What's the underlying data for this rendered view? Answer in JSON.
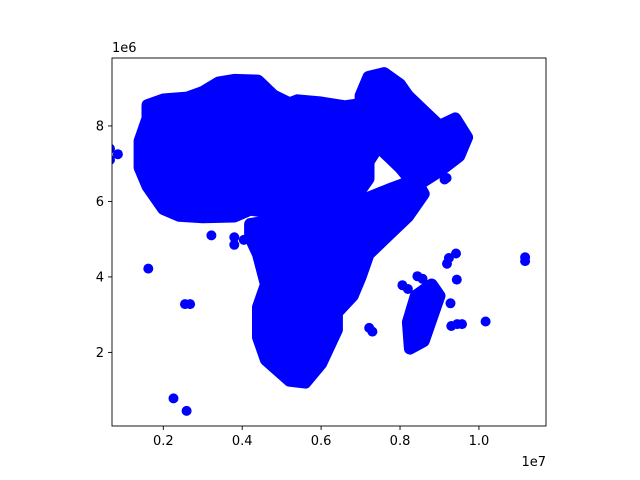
{
  "chart_data": {
    "type": "scatter",
    "title": "",
    "xlabel": "",
    "ylabel": "",
    "x_offset_label": "1e7",
    "y_offset_label": "1e6",
    "xlim": [
      0.07,
      1.17
    ],
    "ylim": [
      0.05,
      9.8
    ],
    "x_ticks": [
      0.2,
      0.4,
      0.6,
      0.8,
      1.0
    ],
    "x_tick_labels": [
      "0.2",
      "0.4",
      "0.6",
      "0.8",
      "1.0"
    ],
    "y_ticks": [
      2,
      4,
      6,
      8
    ],
    "y_tick_labels": [
      "2",
      "4",
      "6",
      "8"
    ],
    "grid": false,
    "marker_color": "#0000ff",
    "series": [
      {
        "regions": [
          {
            "part": "west-north",
            "outline": [
              [
                0.16,
                8.55
              ],
              [
                0.2,
                8.7
              ],
              [
                0.26,
                8.75
              ],
              [
                0.3,
                8.9
              ],
              [
                0.34,
                9.15
              ],
              [
                0.38,
                9.22
              ],
              [
                0.44,
                9.2
              ],
              [
                0.48,
                8.8
              ],
              [
                0.52,
                8.6
              ],
              [
                0.54,
                8.68
              ],
              [
                0.6,
                8.62
              ],
              [
                0.66,
                8.52
              ],
              [
                0.7,
                8.58
              ],
              [
                0.74,
                8.7
              ],
              [
                0.8,
                8.62
              ],
              [
                0.82,
                8.38
              ],
              [
                0.86,
                8.12
              ],
              [
                0.82,
                7.9
              ],
              [
                0.76,
                7.7
              ],
              [
                0.72,
                7.05
              ],
              [
                0.72,
                6.6
              ],
              [
                0.7,
                6.3
              ],
              [
                0.66,
                6.0
              ],
              [
                0.56,
                5.82
              ],
              [
                0.48,
                5.7
              ],
              [
                0.42,
                5.78
              ],
              [
                0.38,
                5.6
              ],
              [
                0.3,
                5.58
              ],
              [
                0.24,
                5.62
              ],
              [
                0.2,
                5.8
              ],
              [
                0.16,
                6.4
              ],
              [
                0.14,
                6.9
              ],
              [
                0.14,
                7.6
              ],
              [
                0.16,
                8.2
              ]
            ]
          },
          {
            "part": "south-body",
            "outline": [
              [
                0.42,
                5.4
              ],
              [
                0.54,
                5.6
              ],
              [
                0.66,
                5.82
              ],
              [
                0.72,
                6.1
              ],
              [
                0.78,
                6.35
              ],
              [
                0.84,
                6.58
              ],
              [
                0.86,
                6.2
              ],
              [
                0.82,
                5.6
              ],
              [
                0.76,
                5.0
              ],
              [
                0.72,
                4.6
              ],
              [
                0.7,
                4.0
              ],
              [
                0.68,
                3.5
              ],
              [
                0.64,
                3.05
              ],
              [
                0.64,
                2.6
              ],
              [
                0.6,
                1.7
              ],
              [
                0.56,
                1.2
              ],
              [
                0.52,
                1.25
              ],
              [
                0.46,
                1.8
              ],
              [
                0.44,
                2.4
              ],
              [
                0.44,
                3.2
              ],
              [
                0.46,
                3.8
              ],
              [
                0.44,
                4.6
              ],
              [
                0.42,
                5.05
              ]
            ]
          },
          {
            "part": "arabia",
            "outline": [
              [
                0.7,
                8.8
              ],
              [
                0.72,
                9.3
              ],
              [
                0.76,
                9.4
              ],
              [
                0.8,
                9.1
              ],
              [
                0.82,
                8.8
              ],
              [
                0.86,
                8.4
              ],
              [
                0.9,
                8.0
              ],
              [
                0.94,
                8.2
              ],
              [
                0.97,
                7.7
              ],
              [
                0.95,
                7.2
              ],
              [
                0.9,
                6.8
              ],
              [
                0.84,
                6.4
              ],
              [
                0.8,
                6.9
              ],
              [
                0.76,
                7.3
              ],
              [
                0.72,
                7.8
              ],
              [
                0.7,
                8.3
              ]
            ]
          },
          {
            "part": "madagascar",
            "outline": [
              [
                0.825,
                2.1
              ],
              [
                0.86,
                2.3
              ],
              [
                0.88,
                2.9
              ],
              [
                0.9,
                3.5
              ],
              [
                0.88,
                3.8
              ],
              [
                0.84,
                3.5
              ],
              [
                0.82,
                2.8
              ]
            ]
          }
        ],
        "points": [
          [
            0.065,
            7.4
          ],
          [
            0.065,
            7.1
          ],
          [
            0.085,
            7.25
          ],
          [
            0.162,
            4.22
          ],
          [
            0.226,
            0.78
          ],
          [
            0.259,
            0.45
          ],
          [
            0.255,
            3.28
          ],
          [
            0.268,
            3.28
          ],
          [
            0.322,
            5.1
          ],
          [
            0.38,
            4.85
          ],
          [
            0.38,
            5.05
          ],
          [
            0.404,
            4.98
          ],
          [
            0.468,
            3.7
          ],
          [
            0.722,
            2.65
          ],
          [
            0.73,
            2.55
          ],
          [
            0.806,
            3.78
          ],
          [
            0.82,
            3.68
          ],
          [
            0.844,
            4.02
          ],
          [
            0.857,
            3.95
          ],
          [
            0.862,
            3.62
          ],
          [
            0.87,
            3.45
          ],
          [
            0.919,
            4.35
          ],
          [
            0.924,
            4.5
          ],
          [
            0.942,
            4.62
          ],
          [
            0.944,
            3.93
          ],
          [
            0.928,
            3.3
          ],
          [
            0.93,
            2.7
          ],
          [
            0.945,
            2.75
          ],
          [
            0.957,
            2.75
          ],
          [
            0.913,
            6.58
          ],
          [
            0.918,
            6.62
          ],
          [
            1.017,
            2.82
          ],
          [
            1.117,
            4.52
          ],
          [
            1.117,
            4.42
          ]
        ]
      }
    ]
  }
}
